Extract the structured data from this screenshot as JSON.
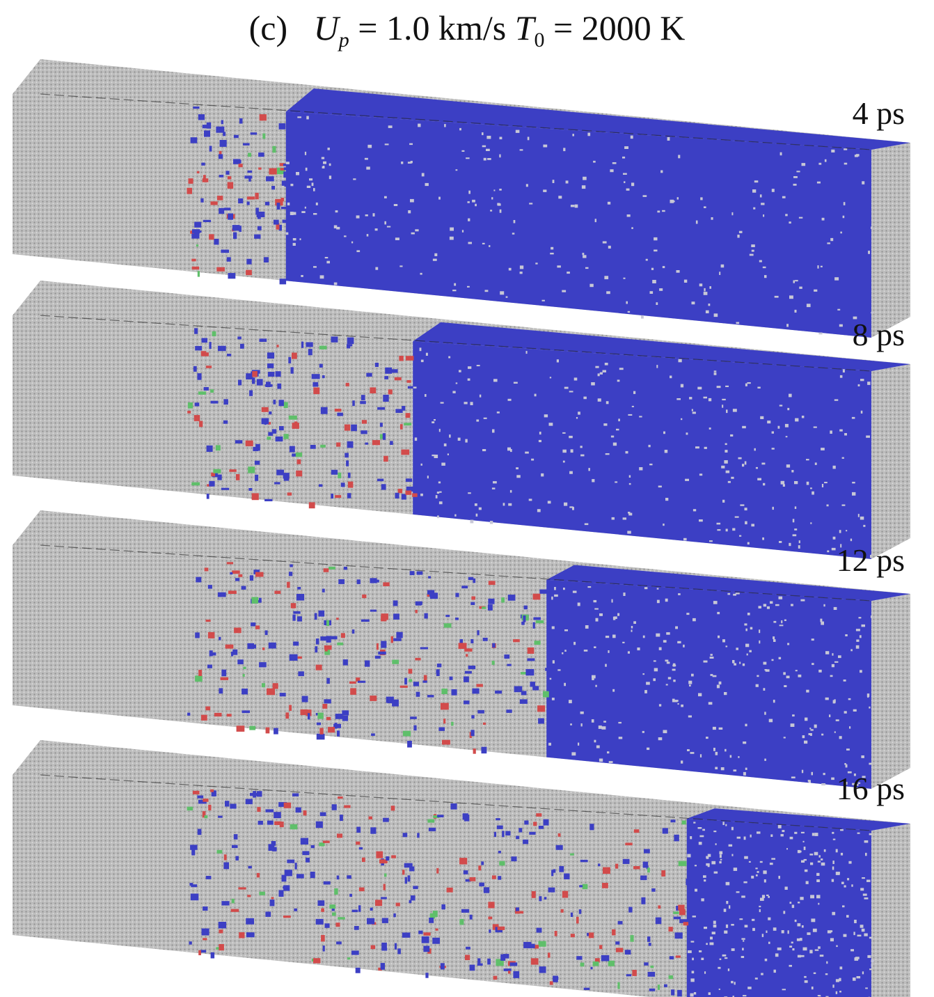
{
  "title": {
    "panel": "(c)",
    "var1": "U",
    "var1_sub": "p",
    "eq1": " = 1.0 km/s ",
    "var2": "T",
    "var2_sub": "0",
    "eq2": " = 2000 K"
  },
  "colors": {
    "shocked": "#3c3fc4",
    "unshocked": "#b8b8b8",
    "red_atoms": "#d24b4b",
    "green_atoms": "#5fbf6a",
    "background": "#ffffff"
  },
  "snapshots": [
    {
      "label": "4 ps",
      "front_fraction": 0.18,
      "mix_fraction": 0.05
    },
    {
      "label": "8 ps",
      "front_fraction": 0.37,
      "mix_fraction": 0.22
    },
    {
      "label": "12 ps",
      "front_fraction": 0.57,
      "mix_fraction": 0.42
    },
    {
      "label": "16 ps",
      "front_fraction": 0.78,
      "mix_fraction": 0.62
    }
  ]
}
